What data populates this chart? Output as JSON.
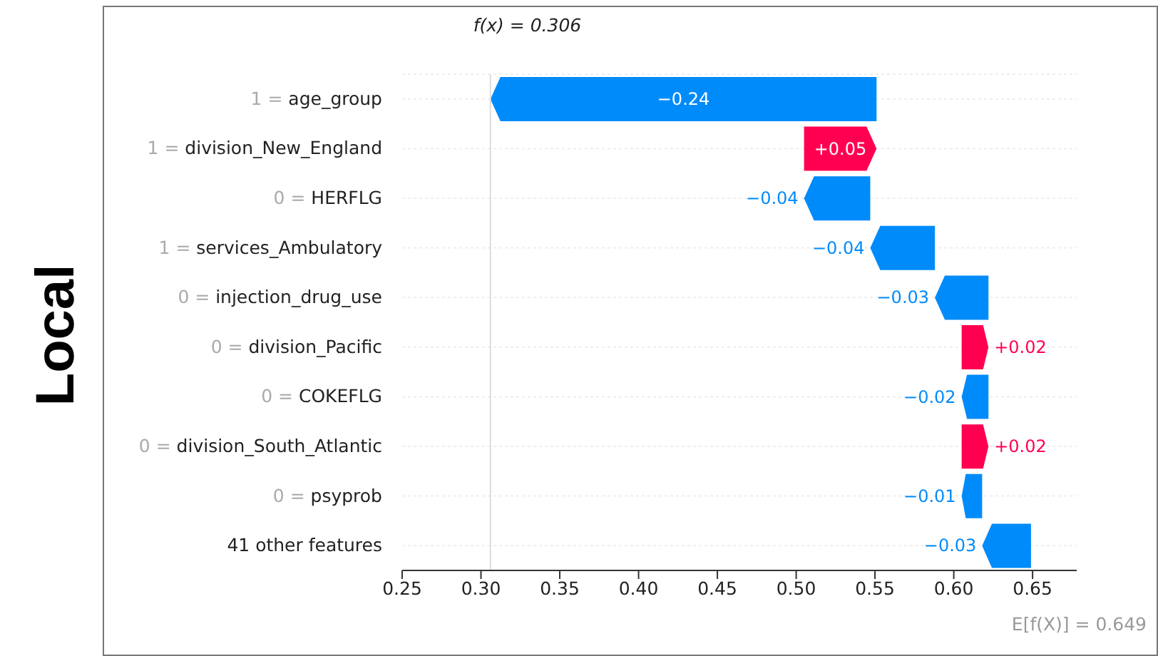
{
  "chart_data": {
    "type": "bar",
    "orientation": "horizontal",
    "categories": [
      "1 = age_group",
      "1 = division_New_England",
      "0 = HERFLG",
      "1 = services_Ambulatory",
      "0 = injection_drug_use",
      "0 = division_Pacific",
      "0 = COKEFLG",
      "0 = division_South_Atlantic",
      "0 = psyprob",
      "41 other features"
    ],
    "values": [
      -0.245,
      0.046,
      -0.042,
      -0.041,
      -0.034,
      0.017,
      -0.017,
      0.017,
      -0.013,
      -0.031
    ],
    "base": [
      0.551,
      0.505,
      0.547,
      0.588,
      0.622,
      0.605,
      0.622,
      0.605,
      0.618,
      0.649
    ],
    "colors": [
      "#008bfb",
      "#ff0051",
      "#008bfb",
      "#008bfb",
      "#008bfb",
      "#ff0051",
      "#008bfb",
      "#ff0051",
      "#008bfb",
      "#008bfb"
    ],
    "value_labels": [
      "−0.24",
      "+0.05",
      "−0.04",
      "−0.04",
      "−0.03",
      "+0.02",
      "−0.02",
      "+0.02",
      "−0.01",
      "−0.03"
    ],
    "xlim": [
      0.25,
      0.678
    ],
    "xticks": [
      0.25,
      {
        "value": 0.3,
        "label": "0.30"
      },
      0.35,
      {
        "value": 0.4,
        "label": "0.40"
      },
      0.45,
      {
        "value": 0.5,
        "label": "0.50"
      },
      0.55,
      {
        "value": 0.6,
        "label": "0.60"
      },
      0.65
    ],
    "ref_lines": [
      {
        "axis": "x",
        "value": 0.306,
        "label": "f(x) = 0.306",
        "color": "#dddddd"
      }
    ],
    "annotations": [
      "Local",
      "E[f(X)] = 0.649"
    ],
    "grid": "y",
    "legend": false
  }
}
